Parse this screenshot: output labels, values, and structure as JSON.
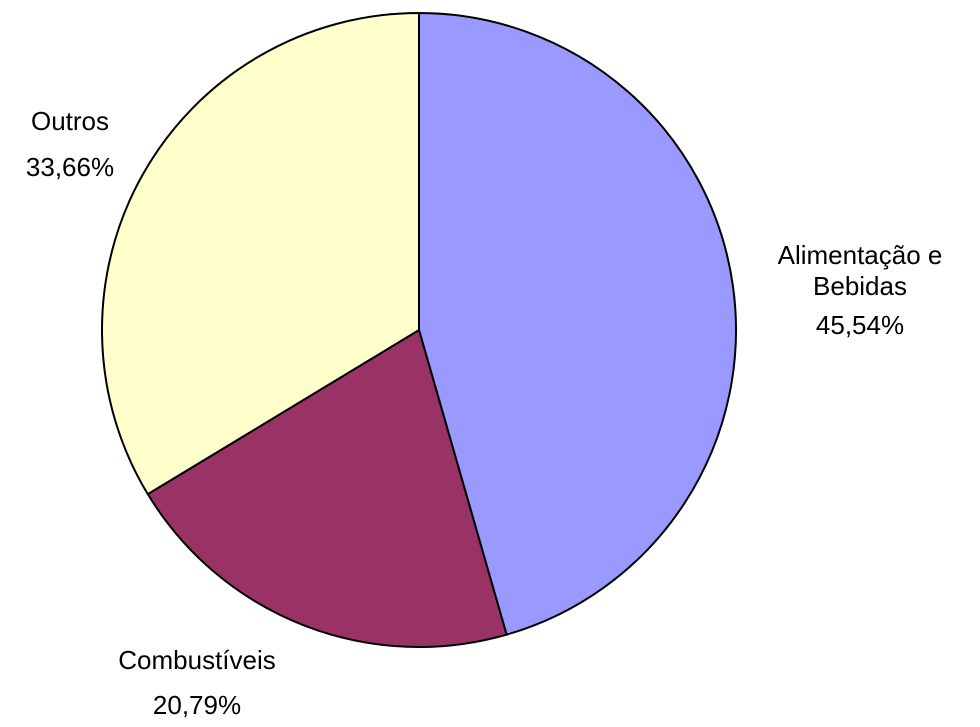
{
  "chart_data": {
    "type": "pie",
    "categories": [
      "Alimentação e Bebidas",
      "Combustíveis",
      "Outros"
    ],
    "values": [
      45.54,
      20.79,
      33.66
    ],
    "value_labels": [
      "45,54%",
      "20,79%",
      "33,66%"
    ],
    "colors": [
      "#9999ff",
      "#993366",
      "#ffffcc"
    ]
  }
}
